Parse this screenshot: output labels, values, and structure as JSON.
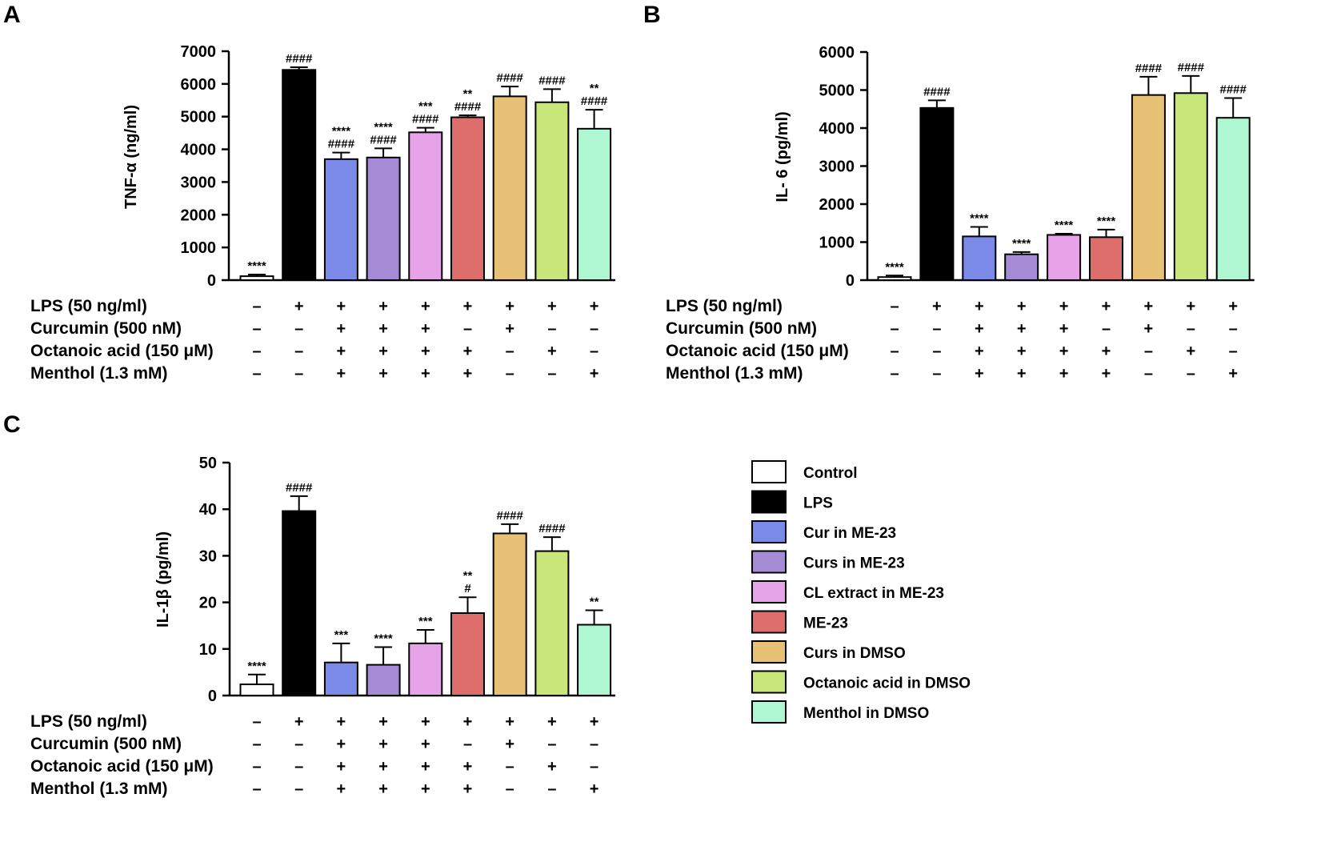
{
  "figure": {
    "legend": [
      {
        "key": "control",
        "label": "Control",
        "color": "#ffffff"
      },
      {
        "key": "lps",
        "label": "LPS",
        "color": "#000000"
      },
      {
        "key": "cur_me23",
        "label": "Cur in ME-23",
        "color": "#7b8ae6"
      },
      {
        "key": "curs_me23",
        "label": "Curs in ME-23",
        "color": "#a58bd6"
      },
      {
        "key": "cl_me23",
        "label": "CL extract in ME-23",
        "color": "#e7a3e7"
      },
      {
        "key": "me23",
        "label": "ME-23",
        "color": "#dd6e6b"
      },
      {
        "key": "curs_dmso",
        "label": "Curs in DMSO",
        "color": "#e6c176"
      },
      {
        "key": "octanoic_dmso",
        "label": "Octanoic acid in DMSO",
        "color": "#c9e67a"
      },
      {
        "key": "menthol_dmso",
        "label": "Menthol in DMSO",
        "color": "#aef7d2"
      }
    ],
    "treatment_rows": [
      {
        "label": "LPS (50 ng/ml)",
        "signs": [
          "–",
          "+",
          "+",
          "+",
          "+",
          "+",
          "+",
          "+",
          "+"
        ]
      },
      {
        "label": "Curcumin (500 nM)",
        "signs": [
          "–",
          "–",
          "+",
          "+",
          "+",
          "–",
          "+",
          "–",
          "–"
        ]
      },
      {
        "label": "Octanoic acid (150 μM)",
        "signs": [
          "–",
          "–",
          "+",
          "+",
          "+",
          "+",
          "–",
          "+",
          "–"
        ]
      },
      {
        "label": "Menthol (1.3 mM)",
        "signs": [
          "–",
          "–",
          "+",
          "+",
          "+",
          "+",
          "–",
          "–",
          "+"
        ]
      }
    ]
  },
  "chart_data": [
    {
      "panel": "A",
      "type": "bar",
      "ylabel": "TNF-α (ng/ml)",
      "ylim": [
        0,
        7000
      ],
      "yticks": [
        0,
        1000,
        2000,
        3000,
        4000,
        5000,
        6000,
        7000
      ],
      "categories": [
        "Control",
        "LPS",
        "Cur in ME-23",
        "Curs in ME-23",
        "CL extract in ME-23",
        "ME-23",
        "Curs in DMSO",
        "Octanoic acid in DMSO",
        "Menthol in DMSO"
      ],
      "values": [
        120,
        6430,
        3700,
        3750,
        4520,
        4980,
        5620,
        5440,
        4630
      ],
      "errors": [
        50,
        80,
        200,
        280,
        140,
        60,
        300,
        400,
        580
      ],
      "annotations": [
        [
          "****"
        ],
        [
          "####"
        ],
        [
          "****",
          "####"
        ],
        [
          "****",
          "####"
        ],
        [
          "***",
          "####"
        ],
        [
          "**",
          "####"
        ],
        [
          "####"
        ],
        [
          "####"
        ],
        [
          "**",
          "####"
        ]
      ]
    },
    {
      "panel": "B",
      "type": "bar",
      "ylabel": "IL- 6 (pg/ml)",
      "ylim": [
        0,
        6000
      ],
      "yticks": [
        0,
        1000,
        2000,
        3000,
        4000,
        5000,
        6000
      ],
      "categories": [
        "Control",
        "LPS",
        "Cur in ME-23",
        "Curs in ME-23",
        "CL extract in ME-23",
        "ME-23",
        "Curs in DMSO",
        "Octanoic acid in DMSO",
        "Menthol in DMSO"
      ],
      "values": [
        80,
        4530,
        1150,
        680,
        1190,
        1130,
        4870,
        4920,
        4270
      ],
      "errors": [
        40,
        200,
        250,
        60,
        30,
        200,
        480,
        450,
        520
      ],
      "annotations": [
        [
          "****"
        ],
        [
          "####"
        ],
        [
          "****"
        ],
        [
          "****"
        ],
        [
          "****"
        ],
        [
          "****"
        ],
        [
          "####"
        ],
        [
          "####"
        ],
        [
          "####"
        ]
      ]
    },
    {
      "panel": "C",
      "type": "bar",
      "ylabel": "IL-1β (pg/ml)",
      "ylim": [
        0,
        50
      ],
      "yticks": [
        0,
        10,
        20,
        30,
        40,
        50
      ],
      "categories": [
        "Control",
        "LPS",
        "Cur in ME-23",
        "Curs in ME-23",
        "CL extract in ME-23",
        "ME-23",
        "Curs in DMSO",
        "Octanoic acid in DMSO",
        "Menthol in DMSO"
      ],
      "values": [
        2.4,
        39.6,
        7.1,
        6.6,
        11.2,
        17.7,
        34.8,
        31.0,
        15.2
      ],
      "errors": [
        2.1,
        3.2,
        4.1,
        3.8,
        2.9,
        3.4,
        2.0,
        3.0,
        3.1
      ],
      "annotations": [
        [
          "****"
        ],
        [
          "####"
        ],
        [
          "***"
        ],
        [
          "****"
        ],
        [
          "***"
        ],
        [
          "**",
          "#"
        ],
        [
          "####"
        ],
        [
          "####"
        ],
        [
          "**"
        ]
      ]
    }
  ]
}
